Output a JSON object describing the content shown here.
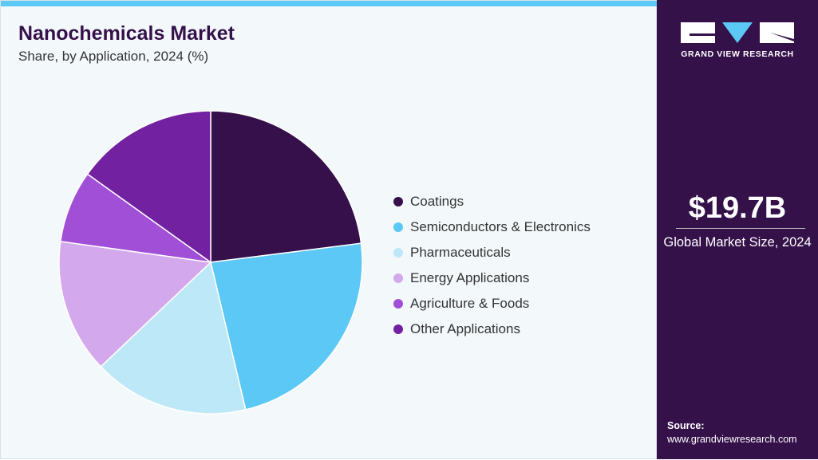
{
  "header": {
    "title": "Nanochemicals Market",
    "subtitle": "Share, by Application, 2024 (%)"
  },
  "brand": {
    "name": "GRAND VIEW RESEARCH",
    "accent": "#5bc8f5",
    "panel_color": "#35114a"
  },
  "summary": {
    "value": "$19.7B",
    "label": "Global Market Size, 2024"
  },
  "source": {
    "label": "Source:",
    "url": "www.grandviewresearch.com"
  },
  "chart_data": {
    "type": "pie",
    "title": "Nanochemicals Market",
    "subtitle": "Share, by Application, 2024 (%)",
    "legend_position": "right",
    "categories": [
      "Coatings",
      "Semiconductors & Electronics",
      "Pharmaceuticals",
      "Energy Applications",
      "Agriculture & Foods",
      "Other Applications"
    ],
    "values": [
      23.0,
      23.3,
      16.6,
      14.3,
      7.7,
      15.1
    ],
    "colors": [
      "#35104a",
      "#5bc8f5",
      "#bde8f8",
      "#d4a8ec",
      "#a24fd8",
      "#7222a0"
    ]
  }
}
